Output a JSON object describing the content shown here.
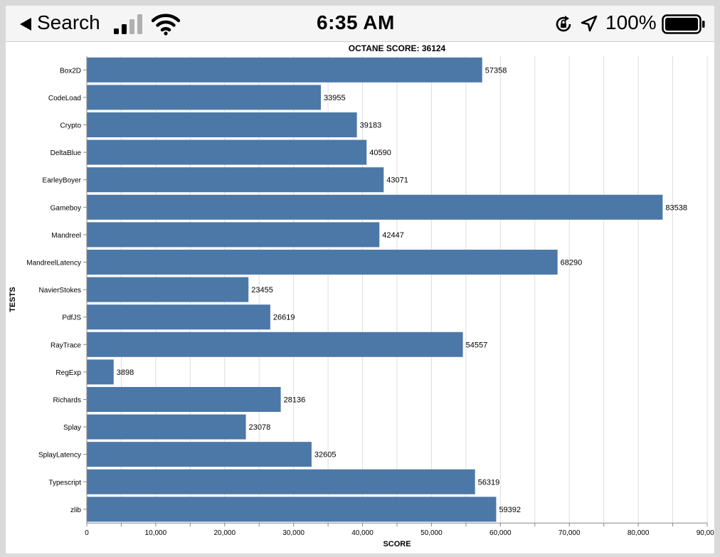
{
  "status_bar": {
    "back_label": "Search",
    "time": "6:35 AM",
    "battery": "100%",
    "icons": [
      "back-arrow-icon",
      "cellular-signal-icon",
      "wifi-icon",
      "orientation-lock-icon",
      "location-arrow-icon",
      "battery-icon"
    ]
  },
  "chart_data": {
    "type": "bar",
    "orientation": "horizontal",
    "title": "OCTANE SCORE: 36124",
    "xlabel": "SCORE",
    "ylabel": "TESTS",
    "categories": [
      "Box2D",
      "CodeLoad",
      "Crypto",
      "DeltaBlue",
      "EarleyBoyer",
      "Gameboy",
      "Mandreel",
      "MandreelLatency",
      "NavierStokes",
      "PdfJS",
      "RayTrace",
      "RegExp",
      "Richards",
      "Splay",
      "SplayLatency",
      "Typescript",
      "zlib"
    ],
    "values": [
      57358,
      33955,
      39183,
      40590,
      43071,
      83538,
      42447,
      68290,
      23455,
      26619,
      54557,
      3898,
      28136,
      23078,
      32605,
      56319,
      59392
    ],
    "xlim": [
      0,
      90000
    ],
    "x_ticks": [
      0,
      5000,
      10000,
      15000,
      20000,
      25000,
      30000,
      35000,
      40000,
      45000,
      50000,
      55000,
      60000,
      65000,
      70000,
      75000,
      80000,
      85000,
      90000
    ],
    "x_tick_labels": [
      "0",
      "",
      "10,000",
      "",
      "20,000",
      "",
      "30,000",
      "",
      "40,000",
      "",
      "50,000",
      "",
      "60,000",
      "",
      "70,000",
      "",
      "80,000",
      "",
      "90,000"
    ],
    "grid": true,
    "bar_color": "#4c78a8",
    "data_labels": true
  }
}
